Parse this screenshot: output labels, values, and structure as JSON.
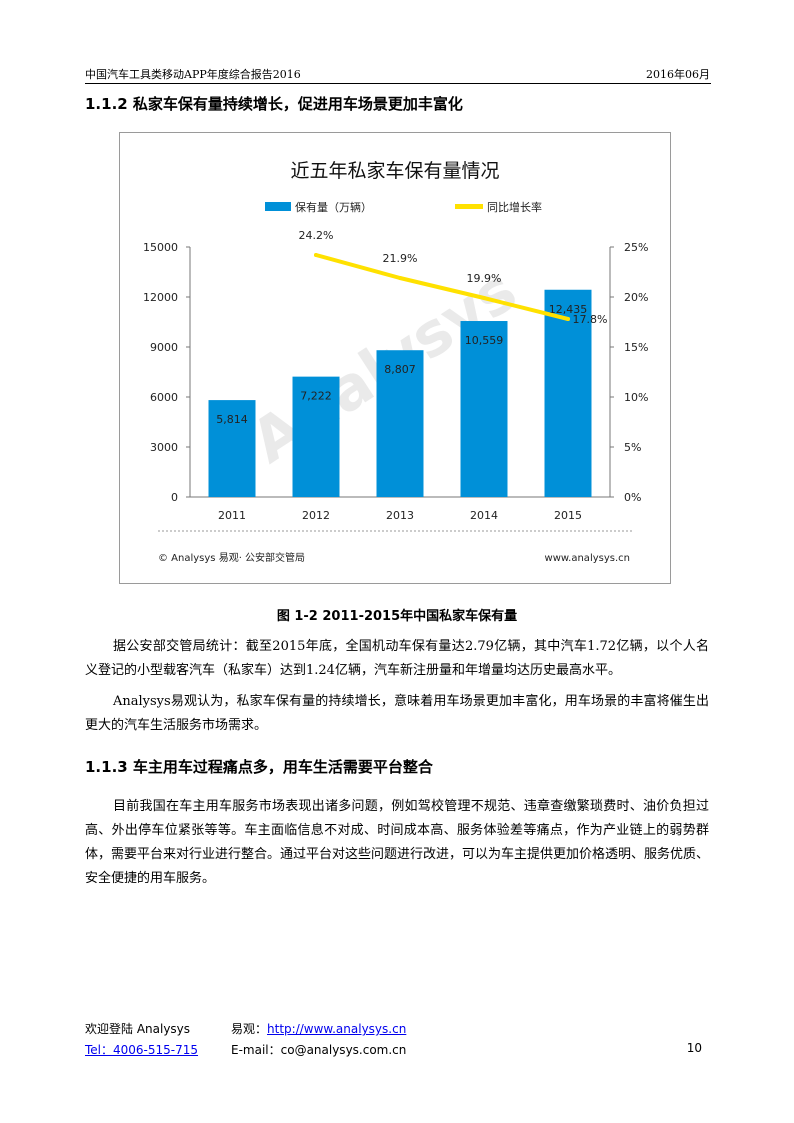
{
  "header": {
    "left": "中国汽车工具类移动APP年度综合报告2016",
    "right": "2016年06月"
  },
  "section_1": {
    "title": "1.1.2 私家车保有量持续增长，促进用车场景更加丰富化"
  },
  "chart_data": {
    "type": "bar",
    "title": "近五年私家车保有量情况",
    "categories": [
      "2011",
      "2012",
      "2013",
      "2014",
      "2015"
    ],
    "series": [
      {
        "name": "保有量（万辆）",
        "type": "bar",
        "axis": "left",
        "values": [
          5814,
          7222,
          8807,
          10559,
          12435
        ],
        "labels": [
          "5,814",
          "7,222",
          "8,807",
          "10,559",
          "12,435"
        ],
        "color": "#0090d8"
      },
      {
        "name": "同比增长率",
        "type": "line",
        "axis": "right",
        "values": [
          null,
          24.2,
          21.9,
          19.9,
          17.8
        ],
        "labels": [
          "",
          "24.2%",
          "21.9%",
          "19.9%",
          "17.8%"
        ],
        "color": "#ffe100"
      }
    ],
    "y_left": {
      "min": 0,
      "max": 15000,
      "ticks": [
        "0",
        "3000",
        "6000",
        "9000",
        "12000",
        "15000"
      ]
    },
    "y_right": {
      "min": 0,
      "max": 25,
      "ticks": [
        "0%",
        "5%",
        "10%",
        "15%",
        "20%",
        "25%"
      ]
    },
    "legend_position": "top",
    "grid": false,
    "source_left": "© Analysys 易观· 公安部交管局",
    "source_right": "www.analysys.cn",
    "watermark": "Analysys"
  },
  "figure_caption": "图 1-2 2011-2015年中国私家车保有量",
  "paragraphs_1": [
    "据公安部交管局统计：截至2015年底，全国机动车保有量达2.79亿辆，其中汽车1.72亿辆，以个人名义登记的小型载客汽车（私家车）达到1.24亿辆，汽车新注册量和年增量均达历史最高水平。",
    "Analysys易观认为，私家车保有量的持续增长，意味着用车场景更加丰富化，用车场景的丰富将催生出更大的汽车生活服务市场需求。"
  ],
  "section_2": {
    "title": "1.1.3 车主用车过程痛点多，用车生活需要平台整合"
  },
  "paragraphs_2": [
    "目前我国在车主用车服务市场表现出诸多问题，例如驾校管理不规范、违章查缴繁琐费时、油价负担过高、外出停车位紧张等等。车主面临信息不对成、时间成本高、服务体验差等痛点，作为产业链上的弱势群体，需要平台来对行业进行整合。通过平台对这些问题进行改进，可以为车主提供更加价格透明、服务优质、安全便捷的用车服务。"
  ],
  "footer": {
    "welcome": "欢迎登陆 Analysys",
    "yiguan_label": "易观：",
    "yiguan_url": "http://www.analysys.cn",
    "tel": "Tel：4006-515-715",
    "email": "E-mail：co@analysys.com.cn",
    "page": "10"
  }
}
